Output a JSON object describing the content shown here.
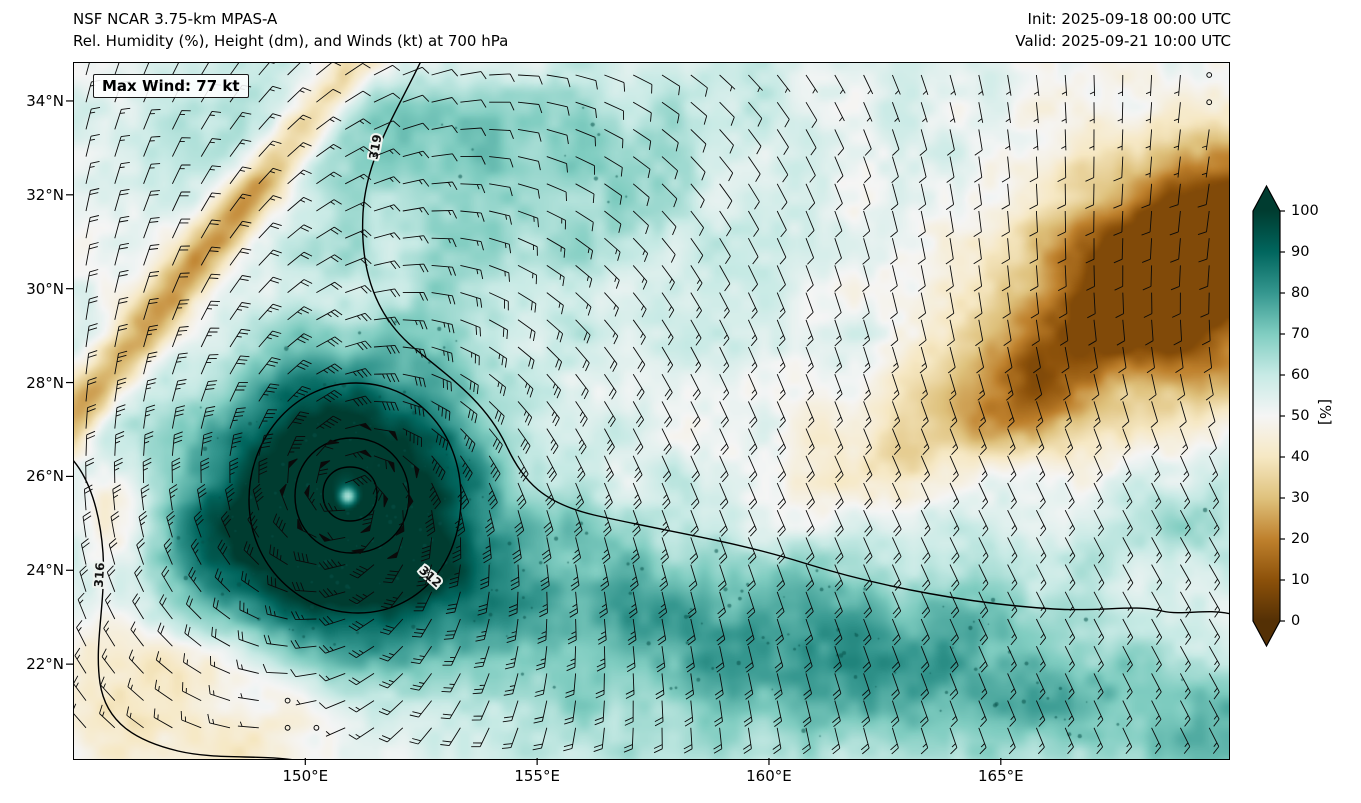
{
  "header": {
    "title_line1": "NSF NCAR 3.75-km MPAS-A",
    "title_line2": "Rel. Humidity (%), Height (dm), and Winds (kt) at 700 hPa",
    "init": "Init: 2025-09-18 00:00 UTC",
    "valid": "Valid: 2025-09-21 10:00 UTC"
  },
  "chart_data": {
    "type": "heatmap",
    "model": "NSF NCAR 3.75-km MPAS-A",
    "title": "Rel. Humidity (%), Height (dm), and Winds (kt) at 700 hPa",
    "field": "relative humidity",
    "field_units": "%",
    "level": "700 hPa",
    "init_time": "2025-09-18 00:00 UTC",
    "valid_time": "2025-09-21 10:00 UTC",
    "max_wind_label": "Max Wind: 77 kt",
    "max_wind_kt": 77,
    "x_axis": {
      "ticks": [
        "150°E",
        "155°E",
        "160°E",
        "165°E"
      ],
      "tick_values": [
        150,
        155,
        160,
        165
      ],
      "range_deg_e": [
        144.99,
        169.9
      ],
      "units": "°E"
    },
    "y_axis": {
      "ticks": [
        "34°N",
        "32°N",
        "30°N",
        "28°N",
        "26°N",
        "24°N",
        "22°N"
      ],
      "tick_values": [
        34,
        32,
        30,
        28,
        26,
        24,
        22
      ],
      "range_deg_n": [
        20.0,
        34.83
      ],
      "units": "°N"
    },
    "colorbar": {
      "label": "[%]",
      "ticks": [
        100,
        90,
        80,
        70,
        60,
        50,
        40,
        30,
        20,
        10,
        0
      ],
      "stops": [
        {
          "value": 0,
          "color": "#543005"
        },
        {
          "value": 10,
          "color": "#8c510a"
        },
        {
          "value": 20,
          "color": "#bf812d"
        },
        {
          "value": 30,
          "color": "#dfc27d"
        },
        {
          "value": 40,
          "color": "#f6e8c3"
        },
        {
          "value": 50,
          "color": "#f5f5f5"
        },
        {
          "value": 60,
          "color": "#c7eae5"
        },
        {
          "value": 70,
          "color": "#80cdc1"
        },
        {
          "value": 80,
          "color": "#35978f"
        },
        {
          "value": 90,
          "color": "#01665e"
        },
        {
          "value": 100,
          "color": "#003c30"
        }
      ]
    },
    "contour_labels": [
      "319",
      "316",
      "312"
    ],
    "cyclone": {
      "center_lon_e": 150.9,
      "center_lat_n": 25.6,
      "max_wind_kt": 77
    }
  }
}
